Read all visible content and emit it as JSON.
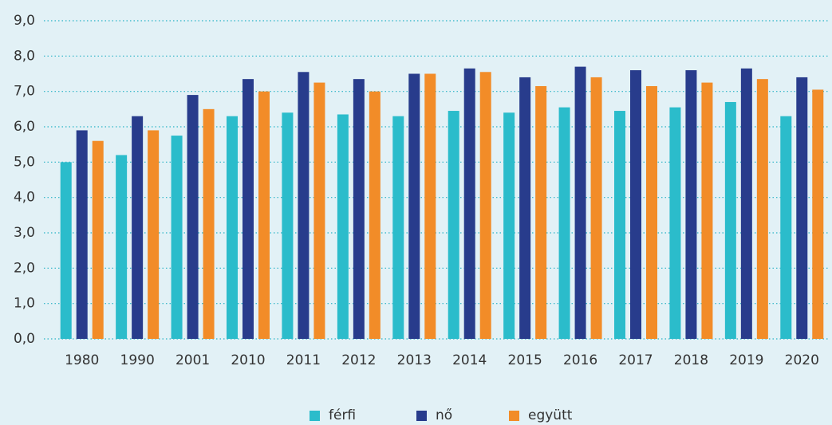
{
  "chart_data": {
    "type": "bar",
    "categories": [
      "1980",
      "1990",
      "2001",
      "2010",
      "2011",
      "2012",
      "2013",
      "2014",
      "2015",
      "2016",
      "2017",
      "2018",
      "2019",
      "2020"
    ],
    "series": [
      {
        "name": "férfi",
        "color": "#2bbccb",
        "values": [
          5.0,
          5.2,
          5.75,
          6.3,
          6.4,
          6.35,
          6.3,
          6.45,
          6.4,
          6.55,
          6.45,
          6.55,
          6.7,
          6.3
        ]
      },
      {
        "name": "nő",
        "color": "#283c8c",
        "values": [
          5.9,
          6.3,
          6.9,
          7.35,
          7.55,
          7.35,
          7.5,
          7.65,
          7.4,
          7.7,
          7.6,
          7.6,
          7.65,
          7.4
        ]
      },
      {
        "name": "együtt",
        "color": "#f28c28",
        "values": [
          5.6,
          5.9,
          6.5,
          7.0,
          7.25,
          7.0,
          7.5,
          7.55,
          7.15,
          7.4,
          7.15,
          7.25,
          7.35,
          7.05
        ]
      }
    ],
    "ylim": [
      0,
      9
    ],
    "yticks": [
      {
        "value": 0,
        "label": "0,0"
      },
      {
        "value": 1,
        "label": "1,0"
      },
      {
        "value": 2,
        "label": "2,0"
      },
      {
        "value": 3,
        "label": "3,0"
      },
      {
        "value": 4,
        "label": "4,0"
      },
      {
        "value": 5,
        "label": "5,0"
      },
      {
        "value": 6,
        "label": "6,0"
      },
      {
        "value": 7,
        "label": "7,0"
      },
      {
        "value": 8,
        "label": "8,0"
      },
      {
        "value": 9,
        "label": "9,0"
      }
    ],
    "grid": true,
    "legend": "bottom"
  }
}
